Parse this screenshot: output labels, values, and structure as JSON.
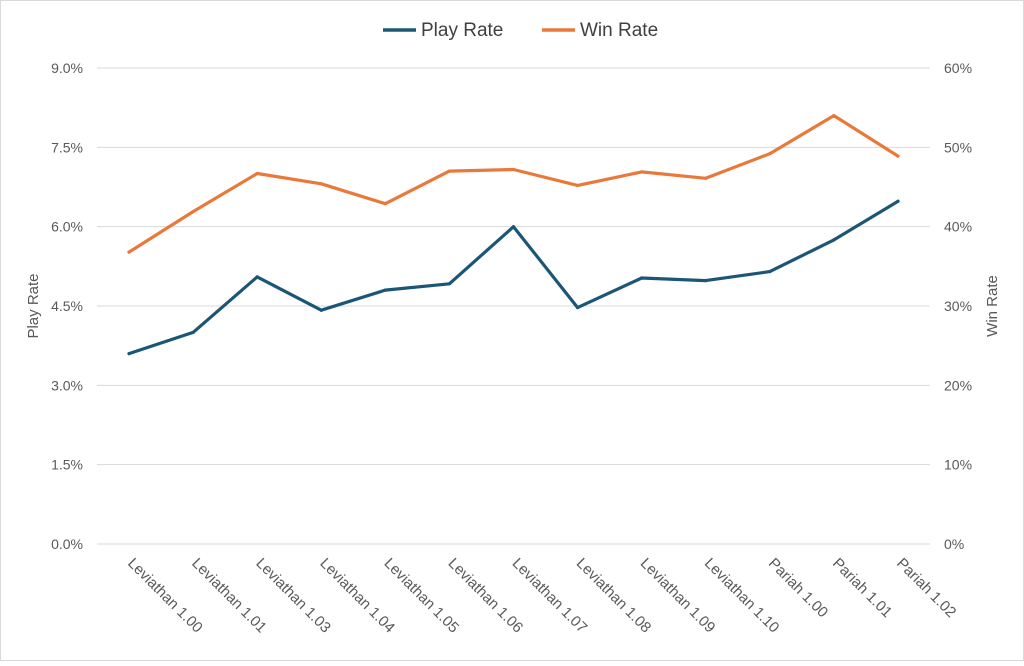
{
  "chart_data": {
    "type": "line",
    "categories": [
      "Leviathan 1.00",
      "Leviathan 1.01",
      "Leviathan 1.03",
      "Leviathan 1.04",
      "Leviathan 1.05",
      "Leviathan 1.06",
      "Leviathan 1.07",
      "Leviathan 1.08",
      "Leviathan 1.09",
      "Leviathan 1.10",
      "Pariah 1.00",
      "Pariah 1.01",
      "Pariah 1.02"
    ],
    "series": [
      {
        "name": "Play Rate",
        "axis": "left",
        "color": "#1b5676",
        "values": [
          3.6,
          4.0,
          5.05,
          4.42,
          4.8,
          4.92,
          6.0,
          4.47,
          5.03,
          4.98,
          5.15,
          5.75,
          6.48
        ]
      },
      {
        "name": "Win Rate",
        "axis": "right",
        "color": "#e8793a",
        "values": [
          36.8,
          41.9,
          46.7,
          45.4,
          42.9,
          47.0,
          47.2,
          45.2,
          46.9,
          46.1,
          49.2,
          54.0,
          48.9
        ]
      }
    ],
    "ylabel": "Play Rate",
    "y2label": "Win Rate",
    "ylim": [
      0,
      9
    ],
    "y2lim": [
      0,
      60
    ],
    "yticks": [
      "0.0%",
      "1.5%",
      "3.0%",
      "4.5%",
      "6.0%",
      "7.5%",
      "9.0%"
    ],
    "y2ticks": [
      "0%",
      "10%",
      "20%",
      "30%",
      "40%",
      "50%",
      "60%"
    ],
    "grid": true,
    "legend": "top-center"
  }
}
